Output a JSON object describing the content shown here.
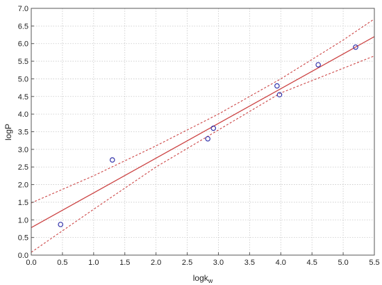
{
  "chart_data": {
    "type": "scatter",
    "xlabel_main": "logk",
    "xlabel_sub": "w",
    "ylabel": "logP",
    "xlim": [
      0.0,
      5.5
    ],
    "ylim": [
      0.0,
      7.0
    ],
    "x_ticks": [
      "0.0",
      "0.5",
      "1.0",
      "1.5",
      "2.0",
      "2.5",
      "3.0",
      "3.5",
      "4.0",
      "4.5",
      "5.0",
      "5.5"
    ],
    "y_ticks": [
      "0.0",
      "0.5",
      "1.0",
      "1.5",
      "2.0",
      "2.5",
      "3.0",
      "3.5",
      "4.0",
      "4.5",
      "5.0",
      "5.5",
      "6.0",
      "6.5",
      "7.0"
    ],
    "grid": true,
    "points": [
      {
        "x": 0.47,
        "y": 0.87
      },
      {
        "x": 1.3,
        "y": 2.7
      },
      {
        "x": 2.83,
        "y": 3.3
      },
      {
        "x": 2.92,
        "y": 3.6
      },
      {
        "x": 3.94,
        "y": 4.8
      },
      {
        "x": 3.98,
        "y": 4.55
      },
      {
        "x": 4.6,
        "y": 5.4
      },
      {
        "x": 5.2,
        "y": 5.9
      }
    ],
    "fit": {
      "intercept": 0.78,
      "slope": 0.985
    },
    "confidence_band": {
      "upper": [
        [
          0.0,
          1.48
        ],
        [
          1.0,
          2.25
        ],
        [
          2.0,
          3.1
        ],
        [
          3.0,
          4.0
        ],
        [
          4.0,
          5.0
        ],
        [
          5.0,
          6.1
        ],
        [
          5.5,
          6.7
        ]
      ],
      "lower": [
        [
          0.0,
          0.08
        ],
        [
          1.0,
          1.3
        ],
        [
          2.0,
          2.5
        ],
        [
          3.0,
          3.55
        ],
        [
          4.0,
          4.6
        ],
        [
          5.0,
          5.3
        ],
        [
          5.5,
          5.65
        ]
      ]
    },
    "colors": {
      "points": "#3333aa",
      "fit": "#cc4444",
      "grid": "#c8c8c8"
    }
  }
}
